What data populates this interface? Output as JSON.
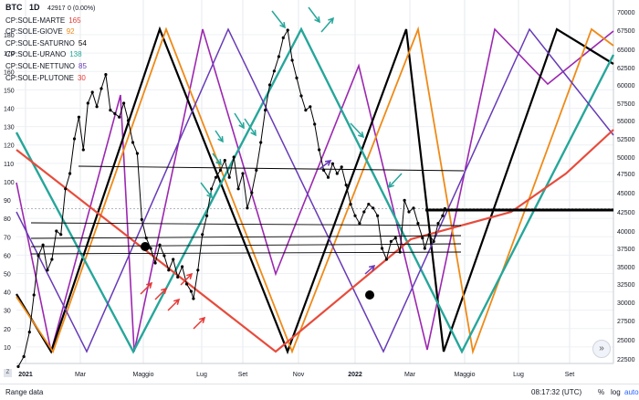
{
  "header": {
    "symbol": "BTC",
    "interval": "1D",
    "price": "42917",
    "change": "0 (0.00%)"
  },
  "legend": [
    {
      "label": "CP:SOLE-MARTE",
      "value": "165",
      "color": "#e53935"
    },
    {
      "label": "CP:SOLE-GIOVE",
      "value": "92",
      "color": "#ef8a17"
    },
    {
      "label": "CP:SOLE-SATURNO",
      "value": "54",
      "color": "#000000"
    },
    {
      "label": "CP:SOLE-URANO",
      "value": "138",
      "color": "#26a69a"
    },
    {
      "label": "CP:SOLE-NETTUNO",
      "value": "85",
      "color": "#673ab7"
    },
    {
      "label": "CP:SOLE-PLUTONE",
      "value": "30",
      "color": "#e53935"
    }
  ],
  "toolbar": {
    "range_label": "Range data",
    "time": "08:17:32 (UTC)",
    "percent": "%",
    "log": "log",
    "auto": "auto",
    "scroll": "»",
    "zoom": "Z"
  },
  "chart_data": {
    "type": "line",
    "x_ticks": [
      "2021",
      "Mar",
      "Maggio",
      "Lug",
      "Set",
      "Nov",
      "2022",
      "Mar",
      "Maggio",
      "Lug",
      "Set"
    ],
    "left_axis": {
      "range": [
        0,
        190
      ],
      "ticks": [
        10,
        20,
        30,
        40,
        50,
        60,
        70,
        80,
        90,
        100,
        110,
        120,
        130,
        140,
        150,
        160,
        170,
        180
      ]
    },
    "right_axis": {
      "range": [
        21000,
        70000
      ],
      "ticks": [
        22500,
        25000,
        27500,
        30000,
        32500,
        35000,
        37500,
        40000,
        42500,
        45000,
        47500,
        50000,
        52500,
        55000,
        57500,
        60000,
        62500,
        65000,
        67500,
        70000
      ],
      "scale": "log-ish"
    },
    "current_price": 42917,
    "price_series": {
      "name": "BTC",
      "points": [
        [
          0,
          21500
        ],
        [
          5,
          22800
        ],
        [
          10,
          26000
        ],
        [
          14,
          31000
        ],
        [
          18,
          36500
        ],
        [
          22,
          38000
        ],
        [
          26,
          34500
        ],
        [
          30,
          36000
        ],
        [
          34,
          40000
        ],
        [
          38,
          39500
        ],
        [
          42,
          45500
        ],
        [
          46,
          47500
        ],
        [
          50,
          52500
        ],
        [
          54,
          55500
        ],
        [
          58,
          51000
        ],
        [
          62,
          57500
        ],
        [
          66,
          59000
        ],
        [
          70,
          57000
        ],
        [
          74,
          59500
        ],
        [
          78,
          61500
        ],
        [
          82,
          56500
        ],
        [
          86,
          56000
        ],
        [
          90,
          55500
        ],
        [
          94,
          57500
        ],
        [
          98,
          55000
        ],
        [
          102,
          52000
        ],
        [
          106,
          50500
        ],
        [
          110,
          41500
        ],
        [
          114,
          39000
        ],
        [
          118,
          37500
        ],
        [
          122,
          35500
        ],
        [
          126,
          38000
        ],
        [
          130,
          36500
        ],
        [
          134,
          34500
        ],
        [
          138,
          36000
        ],
        [
          142,
          33500
        ],
        [
          146,
          35000
        ],
        [
          150,
          32500
        ],
        [
          154,
          31500
        ],
        [
          156,
          30500
        ],
        [
          160,
          34500
        ],
        [
          164,
          39500
        ],
        [
          168,
          42000
        ],
        [
          172,
          45500
        ],
        [
          176,
          47000
        ],
        [
          180,
          48000
        ],
        [
          184,
          49500
        ],
        [
          188,
          47000
        ],
        [
          192,
          50000
        ],
        [
          196,
          45500
        ],
        [
          200,
          47500
        ],
        [
          204,
          43000
        ],
        [
          208,
          45000
        ],
        [
          212,
          48000
        ],
        [
          216,
          52000
        ],
        [
          220,
          56500
        ],
        [
          224,
          60000
        ],
        [
          228,
          62000
        ],
        [
          232,
          64000
        ],
        [
          236,
          66500
        ],
        [
          240,
          67500
        ],
        [
          244,
          63500
        ],
        [
          248,
          61000
        ],
        [
          252,
          58500
        ],
        [
          256,
          56500
        ],
        [
          260,
          57000
        ],
        [
          264,
          54500
        ],
        [
          268,
          51000
        ],
        [
          272,
          48000
        ],
        [
          276,
          47000
        ],
        [
          280,
          49000
        ],
        [
          284,
          47500
        ],
        [
          288,
          48500
        ],
        [
          292,
          46000
        ],
        [
          296,
          43500
        ],
        [
          300,
          42000
        ],
        [
          304,
          41000
        ],
        [
          308,
          42500
        ],
        [
          312,
          43500
        ],
        [
          316,
          43000
        ],
        [
          320,
          42000
        ],
        [
          324,
          37500
        ],
        [
          328,
          36000
        ],
        [
          332,
          38500
        ],
        [
          336,
          39000
        ],
        [
          340,
          37000
        ],
        [
          344,
          44000
        ],
        [
          348,
          42500
        ],
        [
          352,
          43000
        ],
        [
          356,
          41000
        ],
        [
          360,
          39000
        ],
        [
          362,
          37500
        ],
        [
          366,
          39500
        ],
        [
          370,
          38500
        ],
        [
          374,
          41000
        ],
        [
          378,
          42000
        ],
        [
          380,
          42917
        ]
      ]
    },
    "cycle_series": [
      {
        "name": "CP:SOLE-MARTE",
        "value": 165,
        "color": "#e53935"
      },
      {
        "name": "CP:SOLE-GIOVE",
        "value": 92,
        "color": "#ef8a17"
      },
      {
        "name": "CP:SOLE-SATURNO",
        "value": 54,
        "color": "#000000"
      },
      {
        "name": "CP:SOLE-URANO",
        "value": 138,
        "color": "#26a69a"
      },
      {
        "name": "CP:SOLE-NETTUNO",
        "value": 85,
        "color": "#673ab7"
      },
      {
        "name": "CP:SOLE-PLUTONE",
        "value": 30,
        "color": "#e53935"
      }
    ],
    "horizontal_levels": [
      48500,
      44000,
      42500,
      40500,
      39500,
      38500
    ],
    "grid": true
  }
}
